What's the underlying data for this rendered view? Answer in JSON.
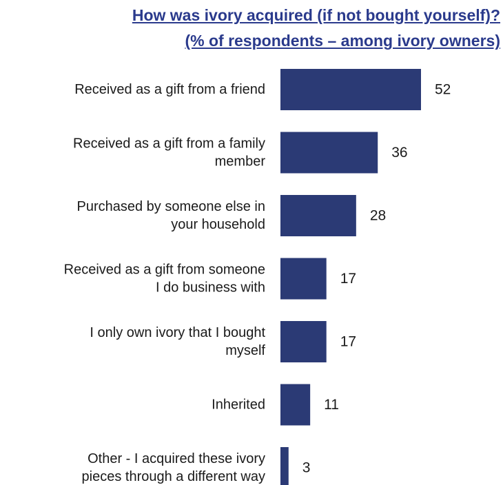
{
  "chart_data": {
    "type": "bar",
    "orientation": "horizontal",
    "title": "How was ivory acquired (if not bought yourself)?",
    "subtitle": "(% of respondents – among ivory owners)",
    "categories": [
      "Received as a gift from a friend",
      "Received as a gift from a family member",
      "Purchased by someone else in your household",
      "Received as a gift from someone I do business with",
      "I only own ivory that I bought myself",
      "Inherited",
      "Other - I acquired these ivory pieces through a different way"
    ],
    "category_lines": [
      [
        "Received as a gift from a friend"
      ],
      [
        "Received as a gift from a family",
        "member"
      ],
      [
        "Purchased by someone else in",
        "your household"
      ],
      [
        "Received as a gift from someone",
        "I do business with"
      ],
      [
        "I only own ivory that I bought",
        "myself"
      ],
      [
        "Inherited"
      ],
      [
        "Other - I acquired these ivory",
        "pieces through a different way"
      ]
    ],
    "values": [
      52,
      36,
      28,
      17,
      17,
      11,
      3
    ],
    "xlim": [
      0,
      60
    ],
    "bar_color": "#2b3a75",
    "title_color": "#2a3a8c",
    "grid": false,
    "legend": "none"
  }
}
